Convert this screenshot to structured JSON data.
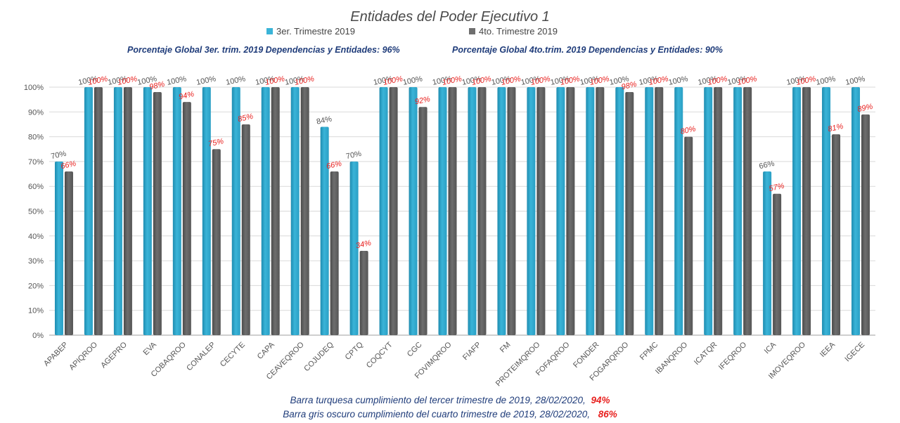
{
  "title": "Entidades del Poder Ejecutivo 1",
  "legend": [
    {
      "label": "3er. Trimestre 2019",
      "color": "#3AB4D8"
    },
    {
      "label": "4to. Trimestre 2019",
      "color": "#6E6E6E"
    }
  ],
  "global_note_1": "Porcentaje Global 3er. trim.  2019 Dependencias y Entidades: 96%",
  "global_note_2": "Porcentaje Global  4to.trim.  2019 Dependencias y Entidades: 90%",
  "footer_1": {
    "text": "Barra turquesa  cumplimiento  del tercer trimestre de 2019,    28/02/2020,",
    "value": "94%"
  },
  "footer_2": {
    "text": "Barra gris oscuro  cumplimiento  del cuarto trimestre de 2019,  28/02/2020,",
    "value": "86%"
  },
  "colors": {
    "series1": "#3AB4D8",
    "series2": "#6E6E6E",
    "label2": "#E8201E",
    "note": "#1F3C7A",
    "grid": "#D9D9D9"
  },
  "chart_data": {
    "type": "bar",
    "title": "Entidades del Poder Ejecutivo 1",
    "ylim": [
      0,
      100
    ],
    "yticks": [
      "0%",
      "10%",
      "20%",
      "30%",
      "40%",
      "50%",
      "60%",
      "70%",
      "80%",
      "90%",
      "100%"
    ],
    "grid": true,
    "legend_position": "top",
    "categories": [
      "APABEP",
      "APIQROO",
      "AGEPRO",
      "EVA",
      "COBAQROO",
      "CONALEP",
      "CECYTE",
      "CAPA",
      "CEAVEQROO",
      "COJUDEQ",
      "CPTQ",
      "COQCYT",
      "CGC",
      "FOVIMQROO",
      "FIAFP",
      "FM",
      "PROTEIMQROO",
      "FOFAQROO",
      "FONDER",
      "FOGARQROO",
      "FPMC",
      "IBANQROO",
      "ICATQR",
      "IFEQROO",
      "ICA",
      "IMOVEQROO",
      "IEEA",
      "IGECE"
    ],
    "series": [
      {
        "name": "3er. Trimestre 2019",
        "values": [
          70,
          100,
          100,
          100,
          100,
          100,
          100,
          100,
          100,
          84,
          70,
          100,
          100,
          100,
          100,
          100,
          100,
          100,
          100,
          100,
          100,
          100,
          100,
          100,
          66,
          100,
          100,
          100
        ]
      },
      {
        "name": "4to. Trimestre 2019",
        "values": [
          66,
          100,
          100,
          98,
          94,
          75,
          85,
          100,
          100,
          66,
          34,
          100,
          92,
          100,
          100,
          100,
          100,
          100,
          100,
          98,
          100,
          80,
          100,
          100,
          57,
          100,
          81,
          89
        ]
      }
    ],
    "series1_labels": [
      "70%",
      "100%",
      "100%",
      "100%",
      "100%",
      "100%",
      "100%",
      "100%",
      "100%",
      "84%",
      "70%",
      "100%",
      "100%",
      "100%",
      "100%",
      "100%",
      "100%",
      "100%",
      "100%",
      "100%",
      "100%",
      "100%",
      "100%",
      "100%",
      "66%",
      "100%",
      "100%",
      "100%"
    ],
    "series2_labels": [
      "66%",
      "100%",
      "100%",
      "98%",
      "94%",
      "75%",
      "85%",
      "100%",
      "100%",
      "66%",
      "34%",
      "100%",
      "92%",
      "100%",
      "100%",
      "100%",
      "100%",
      "100%",
      "100%",
      "98%",
      "100%",
      "80%",
      "100%",
      "100%",
      "57%",
      "100%",
      "81%",
      "89%"
    ]
  }
}
